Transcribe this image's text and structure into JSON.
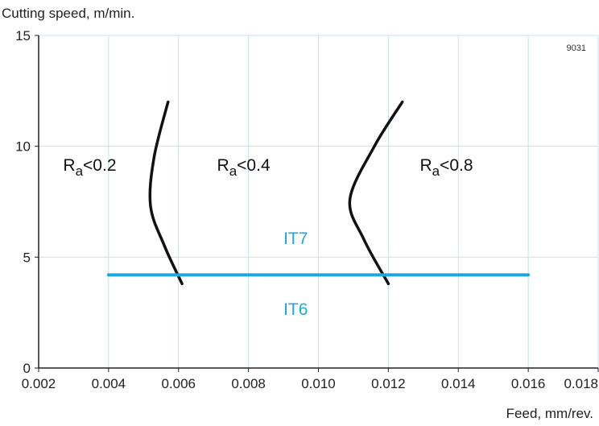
{
  "chart_data": {
    "type": "line",
    "ylabel": "Cutting speed, m/min.",
    "xlabel": "Feed, mm/rev.",
    "figure_code": "9031",
    "x_ticks": [
      "0.002",
      "0.004",
      "0.006",
      "0.008",
      "0.010",
      "0.012",
      "0.014",
      "0.016",
      "0.018"
    ],
    "y_ticks": [
      "0",
      "5",
      "10",
      "15"
    ],
    "xlim": [
      0.002,
      0.018
    ],
    "ylim": [
      0,
      15
    ],
    "grid": true,
    "series": [
      {
        "color": "#111111",
        "points": [
          [
            0.0057,
            12.0
          ],
          [
            0.0053,
            9.5
          ],
          [
            0.0052,
            7.3
          ],
          [
            0.0056,
            5.5
          ],
          [
            0.0061,
            3.8
          ]
        ]
      },
      {
        "color": "#111111",
        "points": [
          [
            0.0124,
            12.0
          ],
          [
            0.0116,
            10.0
          ],
          [
            0.0109,
            7.6
          ],
          [
            0.0113,
            5.8
          ],
          [
            0.012,
            3.8
          ]
        ]
      },
      {
        "color": "#1ea7dc",
        "points": [
          [
            0.004,
            4.2
          ],
          [
            0.016,
            4.2
          ]
        ]
      }
    ],
    "region_labels": [
      {
        "main": "R",
        "sub": "a",
        "rest": "<0.2",
        "x": 0.0027,
        "y": 8.9
      },
      {
        "main": "R",
        "sub": "a",
        "rest": "<0.4",
        "x": 0.0071,
        "y": 8.9
      },
      {
        "main": "R",
        "sub": "a",
        "rest": "<0.8",
        "x": 0.0129,
        "y": 8.9
      }
    ],
    "threshold_labels": [
      {
        "text": "IT7",
        "x": 0.009,
        "y": 5.6,
        "color": "#1ea7dc"
      },
      {
        "text": "IT6",
        "x": 0.009,
        "y": 2.4,
        "color": "#1ea7dc"
      }
    ]
  }
}
